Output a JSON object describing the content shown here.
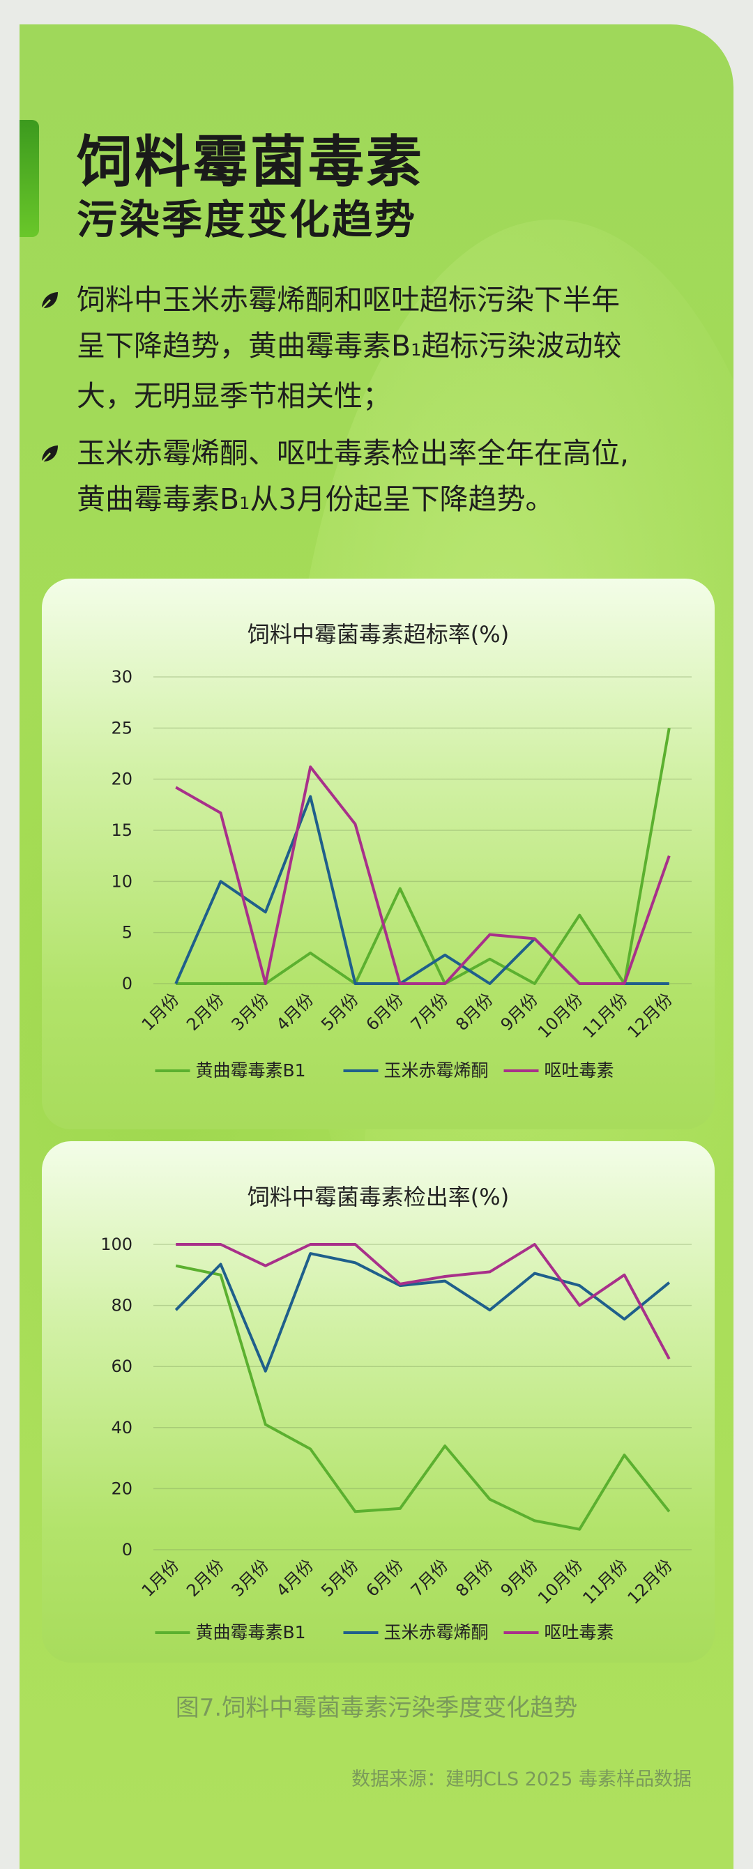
{
  "title": {
    "line1": "饲料霉菌毒素",
    "line2": "污染季度变化趋势"
  },
  "bullets": {
    "b1_l1": "饲料中玉米赤霉烯酮和呕吐超标污染下半年",
    "b1_l2a": "呈下降趋势，黄曲霉毒素B",
    "b1_l2sub": "1",
    "b1_l2b": "超标污染波动较",
    "b1_l3": "大，无明显季节相关性；",
    "b2_l1": "玉米赤霉烯酮、呕吐毒素检出率全年在高位,",
    "b2_l2a": "黄曲霉毒素B",
    "b2_l2sub": "1",
    "b2_l2b": "从3月份起呈下降趋势。"
  },
  "colors": {
    "aflatoxin": "#5bb02f",
    "zearalenone": "#1f5f8b",
    "don": "#a8308a"
  },
  "caption": "图7.饲料中霉菌毒素污染季度变化趋势",
  "source": "数据来源：建明CLS 2025 毒素样品数据",
  "chart_data": [
    {
      "type": "line",
      "title": "饲料中霉菌毒素超标率(%)",
      "categories": [
        "1月份",
        "2月份",
        "3月份",
        "4月份",
        "5月份",
        "6月份",
        "7月份",
        "8月份",
        "9月份",
        "10月份",
        "11月份",
        "12月份"
      ],
      "ylim": [
        0,
        30
      ],
      "yticks": [
        0,
        5,
        10,
        15,
        20,
        25,
        30
      ],
      "grid": true,
      "legend": "bottom",
      "series": [
        {
          "name": "黄曲霉毒素B1",
          "key": "aflatoxin",
          "values": [
            0,
            0,
            0,
            3,
            0,
            9.3,
            0,
            2.4,
            0,
            6.7,
            0,
            25
          ]
        },
        {
          "name": "玉米赤霉烯酮",
          "key": "zearalenone",
          "values": [
            0,
            10,
            7,
            18.3,
            0,
            0,
            2.8,
            0,
            4.4,
            0,
            0,
            0
          ]
        },
        {
          "name": "呕吐毒素",
          "key": "don",
          "values": [
            19.2,
            16.7,
            0,
            21.2,
            15.6,
            0,
            0,
            4.8,
            4.4,
            0,
            0,
            12.5
          ]
        }
      ]
    },
    {
      "type": "line",
      "title": "饲料中霉菌毒素检出率(%)",
      "categories": [
        "1月份",
        "2月份",
        "3月份",
        "4月份",
        "5月份",
        "6月份",
        "7月份",
        "8月份",
        "9月份",
        "10月份",
        "11月份",
        "12月份"
      ],
      "ylim": [
        0,
        100
      ],
      "yticks": [
        0,
        20,
        40,
        60,
        80,
        100
      ],
      "grid": true,
      "legend": "bottom",
      "series": [
        {
          "name": "黄曲霉毒素B1",
          "key": "aflatoxin",
          "values": [
            93,
            90,
            41,
            33,
            12.5,
            13.5,
            34,
            16.5,
            9.5,
            6.7,
            31,
            12.5
          ]
        },
        {
          "name": "玉米赤霉烯酮",
          "key": "zearalenone",
          "values": [
            78.5,
            93.5,
            58.5,
            97,
            94,
            86.5,
            88,
            78.5,
            90.5,
            86.5,
            75.5,
            87.5
          ]
        },
        {
          "name": "呕吐毒素",
          "key": "don",
          "values": [
            100,
            100,
            93,
            100,
            100,
            87,
            89.5,
            91,
            100,
            80,
            90,
            62.5
          ]
        }
      ]
    }
  ]
}
